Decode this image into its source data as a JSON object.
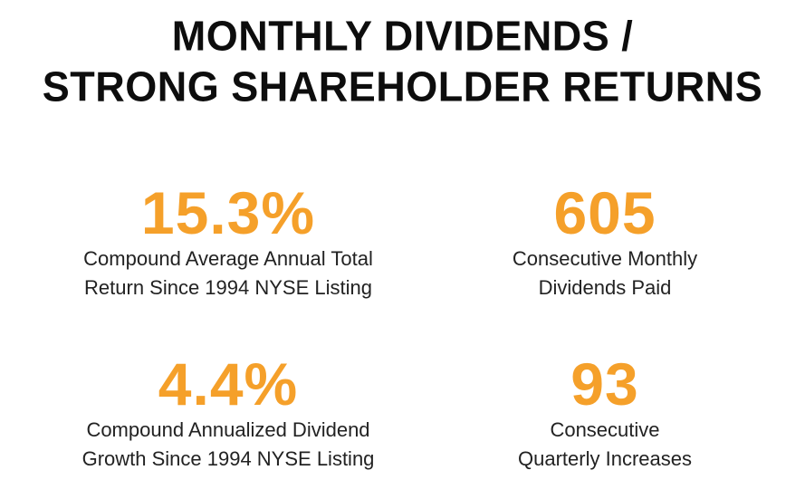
{
  "header": {
    "title_line1": "MONTHLY DIVIDENDS /",
    "title_line2": "STRONG SHAREHOLDER RETURNS"
  },
  "stats": [
    {
      "value": "15.3%",
      "label_line1": "Compound Average Annual Total",
      "label_line2": "Return Since 1994 NYSE Listing"
    },
    {
      "value": "605",
      "label_line1": "Consecutive Monthly",
      "label_line2": "Dividends Paid"
    },
    {
      "value": "4.4%",
      "label_line1": "Compound Annualized Dividend",
      "label_line2": "Growth Since 1994 NYSE Listing"
    },
    {
      "value": "93",
      "label_line1": "Consecutive",
      "label_line2": "Quarterly Increases"
    }
  ],
  "colors": {
    "accent": "#f5a02a",
    "heading": "#0d0d0d",
    "body_text": "#222222",
    "background": "#ffffff"
  }
}
